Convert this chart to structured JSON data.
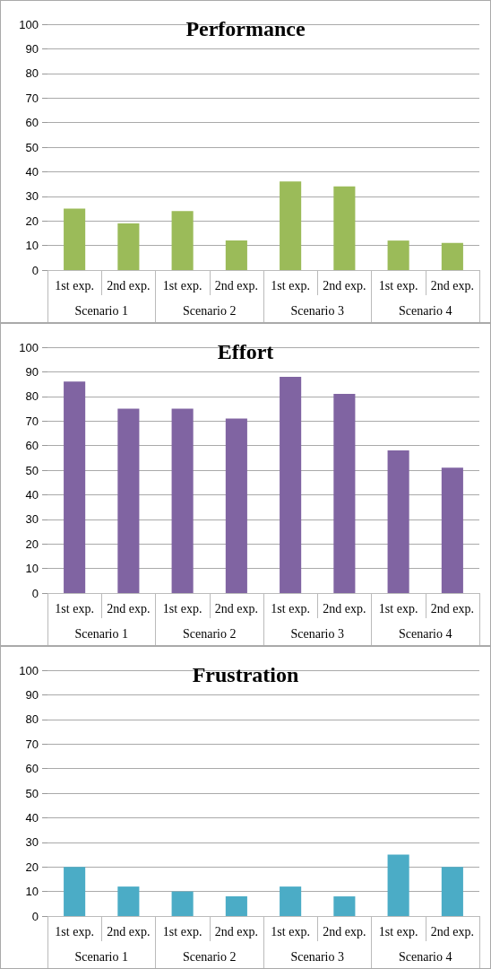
{
  "chart_data": [
    {
      "type": "bar",
      "title": "Performance",
      "categories": [
        "1st exp.",
        "2nd exp.",
        "1st exp.",
        "2nd exp.",
        "1st exp.",
        "2nd exp.",
        "1st exp.",
        "2nd exp."
      ],
      "values": [
        25,
        19,
        24,
        12,
        36,
        34,
        12,
        11
      ],
      "color": "#9bbb59",
      "ylim": [
        0,
        100
      ],
      "yticks": [
        0,
        10,
        20,
        30,
        40,
        50,
        60,
        70,
        80,
        90,
        100
      ],
      "grid": "y",
      "annotations": [
        "Scenario 1",
        "Scenario 2",
        "Scenario 3",
        "Scenario 4"
      ]
    },
    {
      "type": "bar",
      "title": "Effort",
      "categories": [
        "1st exp.",
        "2nd exp.",
        "1st exp.",
        "2nd exp.",
        "1st exp.",
        "2nd exp.",
        "1st exp.",
        "2nd exp."
      ],
      "values": [
        86,
        75,
        75,
        71,
        88,
        81,
        58,
        51
      ],
      "color": "#8064a2",
      "ylim": [
        0,
        100
      ],
      "yticks": [
        0,
        10,
        20,
        30,
        40,
        50,
        60,
        70,
        80,
        90,
        100
      ],
      "grid": "y",
      "annotations": [
        "Scenario 1",
        "Scenario 2",
        "Scenario 3",
        "Scenario 4"
      ]
    },
    {
      "type": "bar",
      "title": "Frustration",
      "categories": [
        "1st exp.",
        "2nd exp.",
        "1st exp.",
        "2nd exp.",
        "1st exp.",
        "2nd exp.",
        "1st exp.",
        "2nd exp."
      ],
      "values": [
        20,
        12,
        10,
        8,
        12,
        8,
        25,
        20
      ],
      "color": "#4bacc6",
      "ylim": [
        0,
        100
      ],
      "yticks": [
        0,
        10,
        20,
        30,
        40,
        50,
        60,
        70,
        80,
        90,
        100
      ],
      "grid": "y",
      "annotations": [
        "Scenario 1",
        "Scenario 2",
        "Scenario 3",
        "Scenario 4"
      ]
    }
  ]
}
